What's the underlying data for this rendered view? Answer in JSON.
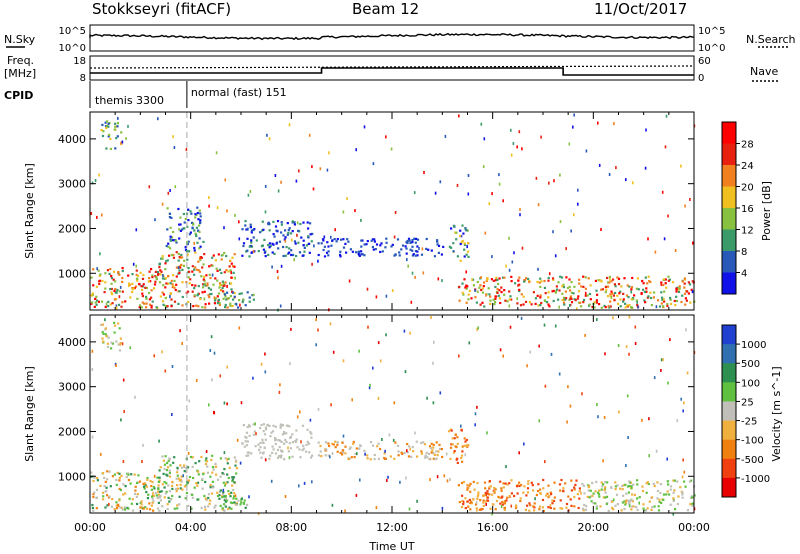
{
  "header": {
    "station": "Stokkseyri (fitACF)",
    "beam": "Beam 12",
    "date": "11/Oct/2017"
  },
  "status": {
    "nsky_label": "N.Sky",
    "nsearch_label": "N.Search",
    "noise_ticks": [
      "10^5",
      "10^0"
    ],
    "freq_label_1": "Freq.",
    "freq_label_2": "[MHz]",
    "freq_ticks": [
      "18",
      "8"
    ],
    "nave_label": "Nave",
    "nave_ticks": [
      "60",
      "0"
    ],
    "cpid_label": "CPID",
    "cpid_segments": [
      {
        "start": 0.0,
        "label": "themis 3300"
      },
      {
        "start": 3.85,
        "label": "normal (fast) 151"
      }
    ]
  },
  "chart_data": [
    {
      "type": "heatmap",
      "name": "power",
      "ylabel": "Slant Range [km]",
      "xlabel": "",
      "colorbar_label": "Power [dB]",
      "y_ticks": [
        1000,
        2000,
        3000,
        4000
      ],
      "ylim": [
        180,
        4600
      ],
      "xlim": [
        0,
        24
      ],
      "colorbar_ticks": [
        "4",
        "8",
        "12",
        "16",
        "20",
        "24",
        "28"
      ],
      "colorbar_range": [
        0,
        32
      ],
      "colors": [
        "#1010e8",
        "#2858b8",
        "#3a9a6a",
        "#88c040",
        "#f0c020",
        "#f08020",
        "#e82010",
        "#ff0000"
      ],
      "regions": [
        {
          "x": [
            0.0,
            2.6
          ],
          "y": [
            250,
            1150
          ],
          "level": [
            2,
            7
          ]
        },
        {
          "x": [
            2.6,
            5.8
          ],
          "y": [
            250,
            1500
          ],
          "level": [
            2,
            7
          ]
        },
        {
          "x": [
            0.4,
            1.2
          ],
          "y": [
            3800,
            4450
          ],
          "level": [
            1,
            4
          ]
        },
        {
          "x": [
            6.0,
            8.8
          ],
          "y": [
            1400,
            2200
          ],
          "level": [
            0,
            2
          ]
        },
        {
          "x": [
            3.0,
            4.5
          ],
          "y": [
            1500,
            2500
          ],
          "level": [
            0,
            3
          ]
        },
        {
          "x": [
            9.0,
            14.0
          ],
          "y": [
            1400,
            1800
          ],
          "level": [
            0,
            1
          ]
        },
        {
          "x": [
            14.2,
            15.0
          ],
          "y": [
            1300,
            2100
          ],
          "level": [
            0,
            4
          ]
        },
        {
          "x": [
            14.6,
            24.0
          ],
          "y": [
            250,
            950
          ],
          "level": [
            2,
            7
          ]
        },
        {
          "x": [
            5.0,
            6.5
          ],
          "y": [
            250,
            600
          ],
          "level": [
            1,
            3
          ]
        }
      ]
    },
    {
      "type": "heatmap",
      "name": "velocity",
      "ylabel": "Slant Range [km]",
      "xlabel": "Time UT",
      "colorbar_label": "Velocity [m s^-1]",
      "y_ticks": [
        1000,
        2000,
        3000,
        4000
      ],
      "ylim": [
        180,
        4600
      ],
      "xlim": [
        0,
        24
      ],
      "x_ticks": [
        "00:00",
        "04:00",
        "08:00",
        "12:00",
        "16:00",
        "20:00",
        "00:00"
      ],
      "colorbar_ticks": [
        "1000",
        "500",
        "100",
        "25",
        "-25",
        "-100",
        "-500",
        "-1000"
      ],
      "colors": [
        "#2040d0",
        "#3070b0",
        "#2e9050",
        "#60c040",
        "#c0c0b8",
        "#f0b040",
        "#f08010",
        "#f04010",
        "#e80000"
      ],
      "regions": [
        {
          "x": [
            0.0,
            2.6
          ],
          "y": [
            250,
            1150
          ],
          "level": [
            2,
            6
          ]
        },
        {
          "x": [
            2.6,
            5.8
          ],
          "y": [
            250,
            1500
          ],
          "level": [
            2,
            5
          ]
        },
        {
          "x": [
            0.4,
            1.2
          ],
          "y": [
            3800,
            4450
          ],
          "level": [
            3,
            5
          ]
        },
        {
          "x": [
            6.0,
            8.8
          ],
          "y": [
            1400,
            2200
          ],
          "level": [
            4,
            4
          ]
        },
        {
          "x": [
            9.0,
            14.0
          ],
          "y": [
            1400,
            1800
          ],
          "level": [
            4,
            6
          ]
        },
        {
          "x": [
            14.2,
            15.0
          ],
          "y": [
            1300,
            2100
          ],
          "level": [
            5,
            7
          ]
        },
        {
          "x": [
            14.6,
            19.5
          ],
          "y": [
            250,
            950
          ],
          "level": [
            5,
            7
          ]
        },
        {
          "x": [
            19.5,
            24.0
          ],
          "y": [
            250,
            950
          ],
          "level": [
            3,
            5
          ]
        },
        {
          "x": [
            5.0,
            6.5
          ],
          "y": [
            250,
            600
          ],
          "level": [
            2,
            4
          ]
        }
      ]
    }
  ],
  "markers": {
    "cpid_change_hour": 3.85
  }
}
